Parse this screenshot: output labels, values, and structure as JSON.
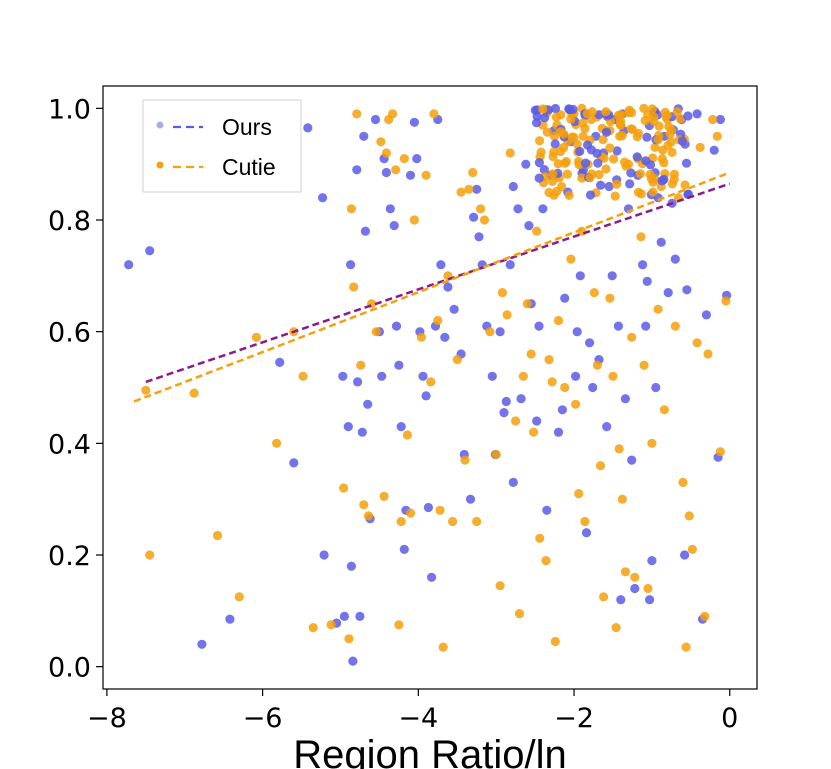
{
  "chart_data": {
    "type": "scatter",
    "title": "",
    "xlabel": "Region Ratio/ln",
    "ylabel": "",
    "xlim": [
      -8.05,
      0.35
    ],
    "ylim": [
      -0.04,
      1.04
    ],
    "xticks": [
      -8,
      -6,
      -4,
      -2,
      0
    ],
    "xtick_labels": [
      "−8",
      "−6",
      "−4",
      "−2",
      "0"
    ],
    "yticks": [
      0.0,
      0.2,
      0.4,
      0.6,
      0.8,
      1.0
    ],
    "ytick_labels": [
      "0.0",
      "0.2",
      "0.4",
      "0.6",
      "0.8",
      "1.0"
    ],
    "grid": false,
    "legend_position": "top-left",
    "series": [
      {
        "name": "Ours",
        "color": "#5a5ae6",
        "trend_color": "#8b1a8b",
        "trend_line": {
          "x": [
            -7.5,
            0.0
          ],
          "y": [
            0.51,
            0.865
          ]
        },
        "points": [
          [
            -7.72,
            0.72
          ],
          [
            -7.45,
            0.745
          ],
          [
            -6.78,
            0.04
          ],
          [
            -6.42,
            0.085
          ],
          [
            -5.78,
            0.545
          ],
          [
            -5.6,
            0.365
          ],
          [
            -5.42,
            0.965
          ],
          [
            -5.23,
            0.84
          ],
          [
            -5.21,
            0.2
          ],
          [
            -5.05,
            0.078
          ],
          [
            -4.97,
            0.52
          ],
          [
            -4.95,
            0.09
          ],
          [
            -4.9,
            0.43
          ],
          [
            -4.87,
            0.72
          ],
          [
            -4.86,
            0.18
          ],
          [
            -4.84,
            0.01
          ],
          [
            -4.79,
            0.89
          ],
          [
            -4.78,
            0.51
          ],
          [
            -4.75,
            0.09
          ],
          [
            -4.72,
            0.42
          ],
          [
            -4.7,
            0.95
          ],
          [
            -4.68,
            0.78
          ],
          [
            -4.65,
            0.47
          ],
          [
            -4.62,
            0.265
          ],
          [
            -4.55,
            0.98
          ],
          [
            -4.5,
            0.6
          ],
          [
            -4.47,
            0.52
          ],
          [
            -4.44,
            0.91
          ],
          [
            -4.41,
            0.885
          ],
          [
            -4.36,
            0.82
          ],
          [
            -4.31,
            0.79
          ],
          [
            -4.28,
            0.61
          ],
          [
            -4.25,
            0.54
          ],
          [
            -4.22,
            0.43
          ],
          [
            -4.18,
            0.21
          ],
          [
            -4.16,
            0.28
          ],
          [
            -4.1,
            0.88
          ],
          [
            -4.05,
            0.975
          ],
          [
            -4.02,
            0.91
          ],
          [
            -3.98,
            0.6
          ],
          [
            -3.94,
            0.52
          ],
          [
            -3.9,
            0.485
          ],
          [
            -3.87,
            0.285
          ],
          [
            -3.83,
            0.16
          ],
          [
            -3.78,
            0.61
          ],
          [
            -3.75,
            0.98
          ],
          [
            -3.71,
            0.72
          ],
          [
            -3.66,
            0.59
          ],
          [
            -3.62,
            0.68
          ],
          [
            -3.54,
            0.64
          ],
          [
            -3.45,
            0.56
          ],
          [
            -3.41,
            0.38
          ],
          [
            -3.33,
            0.3
          ],
          [
            -3.29,
            0.805
          ],
          [
            -3.25,
            0.855
          ],
          [
            -3.22,
            0.77
          ],
          [
            -3.18,
            0.72
          ],
          [
            -3.12,
            0.61
          ],
          [
            -3.05,
            0.52
          ],
          [
            -3.01,
            0.38
          ],
          [
            -2.95,
            0.6
          ],
          [
            -2.9,
            0.455
          ],
          [
            -2.87,
            0.475
          ],
          [
            -2.82,
            0.72
          ],
          [
            -2.78,
            0.86
          ],
          [
            -2.72,
            0.82
          ],
          [
            -2.68,
            0.48
          ],
          [
            -2.62,
            0.9
          ],
          [
            -2.58,
            0.79
          ],
          [
            -2.55,
            0.65
          ],
          [
            -2.45,
            0.61
          ],
          [
            -2.4,
            0.82
          ],
          [
            -2.35,
            0.28
          ],
          [
            -2.3,
            0.88
          ],
          [
            -2.26,
            0.96
          ],
          [
            -2.2,
            0.42
          ],
          [
            -2.15,
            0.46
          ],
          [
            -2.12,
            0.66
          ],
          [
            -2.08,
            0.85
          ],
          [
            -2.04,
            0.94
          ],
          [
            -1.98,
            0.52
          ],
          [
            -1.92,
            0.7
          ],
          [
            -1.88,
            0.89
          ],
          [
            -1.84,
            0.24
          ],
          [
            -1.8,
            0.58
          ],
          [
            -1.76,
            0.5
          ],
          [
            -1.72,
            0.95
          ],
          [
            -1.68,
            0.55
          ],
          [
            -1.62,
            0.92
          ],
          [
            -1.58,
            0.43
          ],
          [
            -1.55,
            0.86
          ],
          [
            -1.51,
            0.7
          ],
          [
            -1.47,
            0.98
          ],
          [
            -1.43,
            0.61
          ],
          [
            -1.4,
            0.12
          ],
          [
            -1.36,
            0.96
          ],
          [
            -1.3,
            0.82
          ],
          [
            -1.26,
            0.37
          ],
          [
            -1.22,
            0.14
          ],
          [
            -1.18,
            0.88
          ],
          [
            -1.12,
            0.72
          ],
          [
            -1.08,
            0.61
          ],
          [
            -1.03,
            0.12
          ],
          [
            -1.0,
            0.19
          ],
          [
            -0.95,
            0.5
          ],
          [
            -0.92,
            0.84
          ],
          [
            -0.88,
            0.76
          ],
          [
            -0.84,
            0.95
          ],
          [
            -0.79,
            0.67
          ],
          [
            -0.74,
            0.83
          ],
          [
            -0.7,
            0.73
          ],
          [
            -0.62,
            0.98
          ],
          [
            -0.58,
            0.2
          ],
          [
            -0.55,
            0.675
          ],
          [
            -0.42,
            0.99
          ],
          [
            -0.35,
            0.085
          ],
          [
            -0.3,
            0.63
          ],
          [
            -0.2,
            0.925
          ],
          [
            -0.15,
            0.375
          ],
          [
            -0.12,
            0.98
          ],
          [
            -0.04,
            0.665
          ],
          [
            -2.78,
            0.33
          ],
          [
            -2.48,
            0.44
          ],
          [
            -1.96,
            0.6
          ],
          [
            -1.34,
            0.48
          ],
          [
            -1.06,
            0.69
          ]
        ]
      },
      {
        "name": "Cutie",
        "color": "#f5a00c",
        "trend_color": "#f5a00c",
        "trend_line": {
          "x": [
            -7.65,
            0.0
          ],
          "y": [
            0.475,
            0.885
          ]
        },
        "points": [
          [
            -7.5,
            0.495
          ],
          [
            -7.45,
            0.2
          ],
          [
            -6.88,
            0.49
          ],
          [
            -6.58,
            0.235
          ],
          [
            -6.3,
            0.125
          ],
          [
            -6.08,
            0.59
          ],
          [
            -5.82,
            0.4
          ],
          [
            -5.62,
            0.975
          ],
          [
            -5.6,
            0.6
          ],
          [
            -5.48,
            0.52
          ],
          [
            -5.35,
            0.07
          ],
          [
            -5.12,
            0.075
          ],
          [
            -4.96,
            0.32
          ],
          [
            -4.89,
            0.05
          ],
          [
            -4.86,
            0.82
          ],
          [
            -4.83,
            0.68
          ],
          [
            -4.79,
            0.99
          ],
          [
            -4.74,
            0.54
          ],
          [
            -4.7,
            0.29
          ],
          [
            -4.64,
            0.27
          ],
          [
            -4.6,
            0.65
          ],
          [
            -4.54,
            0.6
          ],
          [
            -4.48,
            0.94
          ],
          [
            -4.44,
            0.305
          ],
          [
            -4.41,
            0.92
          ],
          [
            -4.38,
            0.98
          ],
          [
            -4.33,
            0.99
          ],
          [
            -4.29,
            0.89
          ],
          [
            -4.25,
            0.075
          ],
          [
            -4.22,
            0.26
          ],
          [
            -4.18,
            0.91
          ],
          [
            -4.14,
            0.415
          ],
          [
            -4.1,
            0.275
          ],
          [
            -4.05,
            0.8
          ],
          [
            -3.96,
            0.59
          ],
          [
            -3.9,
            0.88
          ],
          [
            -3.84,
            0.51
          ],
          [
            -3.8,
            0.99
          ],
          [
            -3.75,
            0.62
          ],
          [
            -3.72,
            0.28
          ],
          [
            -3.68,
            0.035
          ],
          [
            -3.62,
            0.7
          ],
          [
            -3.56,
            0.26
          ],
          [
            -3.5,
            0.55
          ],
          [
            -3.45,
            0.85
          ],
          [
            -3.4,
            0.37
          ],
          [
            -3.35,
            0.855
          ],
          [
            -3.3,
            0.885
          ],
          [
            -3.25,
            0.26
          ],
          [
            -3.2,
            0.82
          ],
          [
            -3.15,
            0.8
          ],
          [
            -3.08,
            0.6
          ],
          [
            -3.0,
            0.38
          ],
          [
            -2.95,
            0.145
          ],
          [
            -2.92,
            0.67
          ],
          [
            -2.86,
            0.63
          ],
          [
            -2.82,
            0.92
          ],
          [
            -2.75,
            0.44
          ],
          [
            -2.7,
            0.095
          ],
          [
            -2.65,
            0.52
          ],
          [
            -2.6,
            0.65
          ],
          [
            -2.55,
            0.56
          ],
          [
            -2.52,
            0.42
          ],
          [
            -2.48,
            0.78
          ],
          [
            -2.44,
            0.23
          ],
          [
            -2.4,
            0.97
          ],
          [
            -2.36,
            0.19
          ],
          [
            -2.32,
            0.55
          ],
          [
            -2.28,
            0.51
          ],
          [
            -2.24,
            0.045
          ],
          [
            -2.2,
            0.62
          ],
          [
            -2.16,
            0.86
          ],
          [
            -2.12,
            0.5
          ],
          [
            -2.08,
            0.94
          ],
          [
            -2.04,
            0.73
          ],
          [
            -1.98,
            0.47
          ],
          [
            -1.94,
            0.31
          ],
          [
            -1.9,
            0.78
          ],
          [
            -1.86,
            0.26
          ],
          [
            -1.82,
            0.9
          ],
          [
            -1.78,
            0.98
          ],
          [
            -1.74,
            0.67
          ],
          [
            -1.7,
            0.54
          ],
          [
            -1.66,
            0.36
          ],
          [
            -1.62,
            0.125
          ],
          [
            -1.58,
            0.96
          ],
          [
            -1.54,
            0.66
          ],
          [
            -1.5,
            0.52
          ],
          [
            -1.46,
            0.07
          ],
          [
            -1.42,
            0.39
          ],
          [
            -1.38,
            0.3
          ],
          [
            -1.34,
            0.17
          ],
          [
            -1.3,
            0.9
          ],
          [
            -1.26,
            0.59
          ],
          [
            -1.22,
            0.16
          ],
          [
            -1.18,
            0.91
          ],
          [
            -1.14,
            0.77
          ],
          [
            -1.1,
            0.54
          ],
          [
            -1.05,
            0.14
          ],
          [
            -1.0,
            0.4
          ],
          [
            -0.96,
            0.93
          ],
          [
            -0.92,
            0.64
          ],
          [
            -0.88,
            0.86
          ],
          [
            -0.84,
            0.46
          ],
          [
            -0.8,
            0.98
          ],
          [
            -0.75,
            0.94
          ],
          [
            -0.7,
            0.61
          ],
          [
            -0.66,
            0.84
          ],
          [
            -0.6,
            0.33
          ],
          [
            -0.56,
            0.035
          ],
          [
            -0.52,
            0.27
          ],
          [
            -0.48,
            0.21
          ],
          [
            -0.42,
            0.58
          ],
          [
            -0.38,
            0.93
          ],
          [
            -0.32,
            0.09
          ],
          [
            -0.28,
            0.56
          ],
          [
            -0.22,
            0.98
          ],
          [
            -0.16,
            0.95
          ],
          [
            -0.12,
            0.385
          ],
          [
            -0.05,
            0.655
          ],
          [
            -2.22,
            0.97
          ],
          [
            -2.0,
            0.99
          ],
          [
            -1.9,
            1.0
          ],
          [
            -1.6,
            0.99
          ],
          [
            -1.4,
            0.97
          ],
          [
            -0.98,
            0.99
          ]
        ]
      }
    ],
    "dense_cluster": {
      "x_range": [
        -2.5,
        -0.5
      ],
      "y_range": [
        0.84,
        1.0
      ],
      "point_count": 180,
      "seed": 12
    }
  }
}
